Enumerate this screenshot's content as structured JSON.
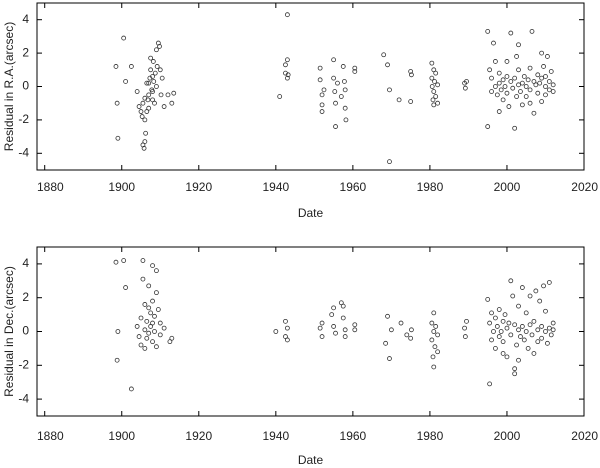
{
  "chart_data": [
    {
      "type": "scatter",
      "xlabel": "Date",
      "ylabel": "Residual in R.A.(arcsec)",
      "color": "#333333",
      "xlim": [
        1878,
        2020
      ],
      "xticks": [
        1880,
        1900,
        1920,
        1940,
        1960,
        1980,
        2000,
        2020
      ],
      "ylim": [
        -5,
        5
      ],
      "yticks": [
        -4,
        -2,
        0,
        2,
        4
      ],
      "x": [
        1898.5,
        1898.8,
        1899,
        1900.5,
        1901,
        1902.5,
        1904,
        1904.5,
        1905,
        1905.3,
        1905.5,
        1905.8,
        1906,
        1906.2,
        1906.5,
        1906.8,
        1907,
        1907,
        1907.3,
        1907.5,
        1907.8,
        1908,
        1908,
        1908.2,
        1908.3,
        1908.5,
        1908.7,
        1909,
        1909,
        1909.2,
        1909.5,
        1909.8,
        1910,
        1910.2,
        1910.5,
        1911,
        1912,
        1913,
        1913.5,
        1906,
        1907,
        1908,
        1907.5,
        1906.5,
        1905.5,
        1906,
        1941,
        1942.5,
        1942.5,
        1943,
        1943,
        1943,
        1943.2,
        1951.5,
        1951.5,
        1952,
        1952,
        1952.5,
        1952,
        1955,
        1955,
        1955.3,
        1955.5,
        1955.5,
        1956,
        1957,
        1957.5,
        1957.8,
        1958,
        1958,
        1958.2,
        1960.5,
        1960.5,
        1968,
        1969,
        1969.5,
        1969.5,
        1972,
        1975,
        1975.2,
        1975,
        1980.5,
        1980.5,
        1980.6,
        1980.8,
        1981,
        1981,
        1981,
        1981.2,
        1981.5,
        1981.5,
        1982,
        1982,
        1989,
        1989.2,
        1989.5,
        1995,
        1995,
        1995.5,
        1996,
        1996,
        1996.5,
        1997,
        1997,
        1997.5,
        1998,
        1998,
        1998.5,
        1999,
        1999,
        1999.5,
        2000,
        2000,
        2000.5,
        2001,
        2001,
        2001.5,
        2002,
        2002,
        2002.5,
        2002.5,
        2003,
        2003,
        2003.5,
        2004,
        2004,
        2004.5,
        2005,
        2005,
        2005.5,
        2006,
        2006,
        2006.5,
        2007,
        2007,
        2007.5,
        2008,
        2008,
        2008.5,
        2009,
        2009,
        2009.5,
        2010,
        2010,
        2010.5,
        2011,
        2011,
        2011.5,
        2012,
        2012,
        2003,
        2000,
        1998,
        2006,
        2009,
        2010
      ],
      "values": [
        1.2,
        -1,
        -3.1,
        2.9,
        0.3,
        1.2,
        -0.3,
        -1.2,
        -1.5,
        -1.8,
        -3.5,
        -3.7,
        -3.3,
        -2.8,
        -1.5,
        -0.8,
        -0.5,
        0.2,
        0.5,
        1.0,
        -0.2,
        0.6,
        -0.8,
        1.5,
        0.3,
        -1.0,
        0.8,
        2.2,
        0,
        1.2,
        2.6,
        2.4,
        1.0,
        -0.5,
        0.5,
        -1.2,
        -0.5,
        -1.0,
        -0.4,
        -2.0,
        -1.3,
        -0.3,
        1.7,
        0.2,
        -1.0,
        -0.7,
        -0.6,
        1.3,
        0.8,
        1.6,
        4.3,
        0.5,
        0.7,
        1.1,
        0.4,
        -0.5,
        -1.5,
        -0.2,
        -1.1,
        1.6,
        0.5,
        -0.3,
        -1.0,
        -2.4,
        0.2,
        -0.6,
        1.2,
        0.3,
        -0.2,
        -1.3,
        -2.0,
        1.1,
        0.9,
        1.9,
        1.3,
        -0.2,
        -4.5,
        -0.8,
        0.9,
        0.7,
        -0.9,
        1.4,
        0.5,
        0,
        -0.8,
        1.0,
        -0.3,
        -1.1,
        0.3,
        -0.6,
        0.8,
        -1.0,
        0.1,
        0.2,
        -0.1,
        0.3,
        3.3,
        -2.4,
        1.0,
        0.5,
        -0.3,
        2.6,
        0,
        1.5,
        -0.5,
        0.2,
        0.8,
        -0.2,
        0.4,
        -0.8,
        0,
        0.6,
        -0.4,
        -1.2,
        0.3,
        3.2,
        -0.1,
        -2.5,
        0.5,
        1.8,
        -0.6,
        0.1,
        1.0,
        -0.3,
        0.2,
        -1.1,
        0.6,
        0,
        -0.6,
        0.4,
        1.1,
        -0.2,
        3.3,
        0.3,
        -1.6,
        0.1,
        0.7,
        -0.4,
        0.2,
        -0.9,
        0.5,
        1.2,
        0,
        -0.5,
        1.8,
        0.3,
        -0.2,
        0.9,
        0.1,
        -0.3,
        2.5,
        1.5,
        -1.5,
        -1.0,
        2.0,
        0.6
      ]
    },
    {
      "type": "scatter",
      "xlabel": "Date",
      "ylabel": "Residual in Dec.(arcsec)",
      "color": "#333333",
      "xlim": [
        1878,
        2020
      ],
      "xticks": [
        1880,
        1900,
        1920,
        1940,
        1960,
        1980,
        2000,
        2020
      ],
      "ylim": [
        -5,
        5
      ],
      "yticks": [
        -4,
        -2,
        0,
        2,
        4
      ],
      "x": [
        1898.5,
        1898.8,
        1899,
        1900.5,
        1901,
        1902.5,
        1904,
        1904.5,
        1905,
        1905,
        1905.5,
        1905.5,
        1906,
        1906,
        1906.5,
        1906.5,
        1907,
        1907,
        1907.5,
        1907.5,
        1908,
        1908,
        1908,
        1908.5,
        1908.5,
        1909,
        1909,
        1909,
        1909.5,
        1910,
        1910,
        1911,
        1912.5,
        1913,
        1906,
        1907,
        1908,
        1940,
        1942.5,
        1942.5,
        1943,
        1943,
        1951.5,
        1952,
        1952,
        1954.5,
        1955,
        1955,
        1955.5,
        1957,
        1957.5,
        1957.5,
        1958,
        1958,
        1960.5,
        1960.5,
        1968.5,
        1969,
        1969.5,
        1970,
        1972.5,
        1974,
        1975,
        1975.2,
        1980.5,
        1980.5,
        1980.8,
        1981,
        1981,
        1981,
        1981.3,
        1981.5,
        1982,
        1982,
        1989,
        1989.2,
        1989.5,
        1995,
        1995.5,
        1995.5,
        1996,
        1996,
        1996.5,
        1997,
        1997,
        1997.5,
        1998,
        1998,
        1998.5,
        1999,
        1999,
        1999.5,
        2000,
        2000,
        2000.5,
        2001,
        2001,
        2001.5,
        2002,
        2002,
        2002,
        2002.5,
        2003,
        2003,
        2003.5,
        2004,
        2004,
        2004.5,
        2005,
        2005,
        2005.5,
        2006,
        2006,
        2006.5,
        2007,
        2007,
        2007.5,
        2008,
        2008,
        2008.5,
        2009,
        2009,
        2009.5,
        2010,
        2010,
        2010.5,
        2011,
        2011,
        2011.5,
        2012,
        2012,
        2003,
        1999
      ],
      "values": [
        4.1,
        -1.7,
        0,
        4.2,
        2.6,
        -3.4,
        0.3,
        -0.3,
        0.8,
        -0.8,
        4.2,
        3.1,
        0.1,
        1.6,
        -0.4,
        0.6,
        2.7,
        -0.1,
        1.1,
        0.3,
        3.9,
        1.8,
        -0.6,
        0.9,
        0,
        3.6,
        2.3,
        -0.9,
        1.3,
        0.5,
        -0.2,
        0.2,
        -0.6,
        -0.4,
        -1.0,
        1.4,
        0.5,
        0,
        0.6,
        -0.3,
        0.2,
        -0.5,
        0.2,
        0.5,
        -0.3,
        1.0,
        1.4,
        0.3,
        -0.1,
        1.7,
        1.5,
        0.8,
        0.1,
        -0.3,
        0.4,
        0.1,
        -0.7,
        0.9,
        -1.6,
        0.1,
        0.5,
        -0.2,
        -0.4,
        0.1,
        0.5,
        -0.5,
        -1.5,
        0,
        -2.1,
        1.1,
        -0.9,
        0.3,
        -1.2,
        -0.2,
        0.2,
        -0.3,
        0.6,
        1.9,
        -3.1,
        0.5,
        -0.5,
        1.1,
        0,
        0.8,
        -1.0,
        0.3,
        -0.3,
        1.3,
        0,
        0.6,
        -0.6,
        1.0,
        0.2,
        -1.5,
        0.5,
        3.0,
        -0.2,
        2.1,
        -2.2,
        -2.5,
        0.4,
        -0.8,
        0.1,
        1.5,
        -0.3,
        0.3,
        2.6,
        -0.5,
        0,
        1.1,
        -1.0,
        0.4,
        2.1,
        -0.2,
        0.6,
        -1.3,
        2.4,
        0.1,
        -0.6,
        1.8,
        0.3,
        -0.4,
        2.7,
        0,
        1.2,
        -0.7,
        0.2,
        2.9,
        -0.2,
        0.1,
        0.5,
        -1.7,
        -1.3
      ]
    }
  ]
}
